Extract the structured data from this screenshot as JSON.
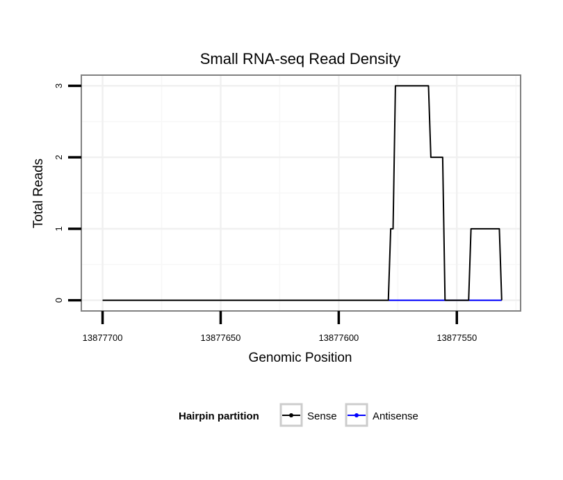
{
  "chart_data": {
    "type": "line",
    "title": "Small RNA-seq Read Density",
    "xlabel": "Genomic Position",
    "ylabel": "Total Reads",
    "xlim": [
      13877709,
      13877523
    ],
    "ylim": [
      -0.15,
      3.15
    ],
    "x_ticks": [
      13877700,
      13877650,
      13877600,
      13877550
    ],
    "x_tick_labels": [
      "13877700",
      "13877650",
      "13877600",
      "13877550"
    ],
    "y_ticks": [
      0,
      1,
      2,
      3
    ],
    "y_tick_labels": [
      "0",
      "1",
      "2",
      "3"
    ],
    "grid": true,
    "legend": {
      "title": "Hairpin partition",
      "position": "bottom",
      "entries": [
        "Sense",
        "Antisense"
      ]
    },
    "series": [
      {
        "name": "Sense",
        "color": "#000000",
        "x": [
          13877700,
          13877579,
          13877578,
          13877577,
          13877576,
          13877571,
          13877562,
          13877561,
          13877556,
          13877555,
          13877549,
          13877545,
          13877544,
          13877532,
          13877531
        ],
        "y": [
          0,
          0,
          1,
          1,
          3,
          3,
          3,
          2,
          2,
          0,
          0,
          0,
          1,
          1,
          0
        ]
      },
      {
        "name": "Antisense",
        "color": "#0000ff",
        "x": [
          13877579,
          13877531
        ],
        "y": [
          0,
          0
        ]
      }
    ]
  }
}
